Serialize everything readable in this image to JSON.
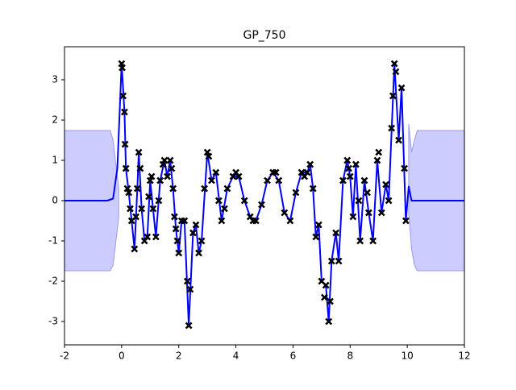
{
  "chart_data": {
    "type": "line",
    "title": "GP_750",
    "xlim": [
      -2,
      12
    ],
    "ylim": [
      -3.58,
      3.82
    ],
    "xticks": [
      -2,
      0,
      2,
      4,
      6,
      8,
      10,
      12
    ],
    "yticks": [
      -3,
      -2,
      -1,
      0,
      1,
      2,
      3
    ],
    "band": {
      "color": "#ccccff",
      "edge": "#9999ee",
      "x": [
        -2,
        -0.4,
        -0.3,
        -0.2,
        -0.1,
        5,
        10.05,
        10.15,
        10.25,
        10.35,
        12
      ],
      "upper": [
        1.74,
        1.74,
        1.5,
        0.9,
        0.3,
        null,
        1.9,
        1.2,
        1.5,
        1.74,
        1.74
      ],
      "lower": [
        -1.74,
        -1.74,
        -1.6,
        -1.0,
        -0.4,
        null,
        -0.3,
        -1.2,
        -1.6,
        -1.74,
        -1.74
      ]
    },
    "mean": {
      "color": "#0000ff",
      "x": [
        -2,
        -0.5,
        -0.3,
        -0.15,
        0,
        0.1,
        0.15,
        0.25,
        0.35,
        0.45,
        0.55,
        0.6,
        0.7,
        0.8,
        0.9,
        1.0,
        1.1,
        1.2,
        1.35,
        1.5,
        1.6,
        1.7,
        1.8,
        1.9,
        2.0,
        2.1,
        2.2,
        2.35,
        2.5,
        2.6,
        2.7,
        2.8,
        3.0,
        3.15,
        3.3,
        3.5,
        3.7,
        3.9,
        4.1,
        4.3,
        4.5,
        4.7,
        4.9,
        5.1,
        5.3,
        5.5,
        5.7,
        5.9,
        6.1,
        6.3,
        6.5,
        6.6,
        6.7,
        6.8,
        6.9,
        7.0,
        7.15,
        7.25,
        7.35,
        7.5,
        7.6,
        7.75,
        7.9,
        8.0,
        8.1,
        8.2,
        8.35,
        8.5,
        8.65,
        8.8,
        8.95,
        9.1,
        9.25,
        9.35,
        9.55,
        9.7,
        9.8,
        9.95,
        10.05,
        10.15,
        12
      ],
      "values": [
        0,
        0,
        0.05,
        0.8,
        3.4,
        2.2,
        0.8,
        0.2,
        -0.5,
        -1.2,
        0.3,
        1.2,
        -0.2,
        -1.0,
        -0.9,
        0.5,
        -0.2,
        -0.9,
        0.5,
        1.0,
        0.6,
        1.0,
        0.3,
        -0.7,
        -1.3,
        -0.5,
        -0.5,
        -3.1,
        -0.8,
        -0.6,
        -1.3,
        -1.0,
        1.2,
        0.5,
        0.7,
        -0.5,
        0.3,
        0.6,
        0.6,
        0.0,
        -0.4,
        -0.5,
        -0.1,
        0.5,
        0.7,
        0.5,
        -0.3,
        -0.5,
        0.2,
        0.7,
        0.7,
        0.9,
        0.3,
        -0.9,
        -0.6,
        -2.0,
        -2.1,
        -3.0,
        -1.5,
        -0.8,
        -1.5,
        0.5,
        1.0,
        0.6,
        -0.4,
        0.9,
        -1.0,
        0.5,
        -0.3,
        -1.0,
        1.0,
        -0.3,
        0.4,
        0.0,
        3.4,
        1.5,
        2.8,
        -0.5,
        0.35,
        0,
        0
      ]
    },
    "points": {
      "color": "#000000",
      "x": [
        0,
        0.02,
        0.05,
        0.1,
        0.12,
        0.15,
        0.2,
        0.25,
        0.3,
        0.35,
        0.45,
        0.5,
        0.55,
        0.6,
        0.65,
        0.7,
        0.8,
        0.9,
        0.95,
        1.0,
        1.05,
        1.1,
        1.2,
        1.3,
        1.35,
        1.45,
        1.5,
        1.6,
        1.7,
        1.75,
        1.8,
        1.85,
        1.9,
        1.95,
        2.0,
        2.1,
        2.2,
        2.3,
        2.35,
        2.4,
        2.5,
        2.6,
        2.7,
        2.8,
        2.9,
        3.0,
        3.05,
        3.15,
        3.3,
        3.4,
        3.5,
        3.6,
        3.7,
        3.9,
        4.0,
        4.1,
        4.3,
        4.5,
        4.6,
        4.7,
        4.9,
        5.1,
        5.3,
        5.4,
        5.5,
        5.7,
        5.9,
        6.1,
        6.3,
        6.4,
        6.5,
        6.6,
        6.7,
        6.8,
        6.9,
        7.0,
        7.1,
        7.15,
        7.25,
        7.3,
        7.35,
        7.5,
        7.6,
        7.75,
        7.9,
        7.95,
        8.0,
        8.1,
        8.2,
        8.3,
        8.35,
        8.5,
        8.6,
        8.65,
        8.8,
        8.95,
        9.0,
        9.1,
        9.25,
        9.35,
        9.45,
        9.5,
        9.55,
        9.6,
        9.7,
        9.8,
        9.9,
        9.95
      ],
      "y": [
        3.4,
        3.3,
        2.6,
        2.2,
        1.4,
        0.8,
        0.3,
        0.2,
        -0.2,
        -0.5,
        -1.2,
        -0.4,
        0.3,
        1.2,
        0.8,
        -0.2,
        -1.0,
        -0.9,
        0.1,
        0.5,
        0.6,
        -0.2,
        -0.9,
        0.0,
        0.5,
        0.9,
        1.0,
        0.6,
        1.0,
        0.8,
        0.3,
        -0.4,
        -0.7,
        -1.0,
        -1.3,
        -0.5,
        -0.5,
        -2.0,
        -3.1,
        -2.2,
        -0.8,
        -0.6,
        -1.3,
        -1.0,
        0.3,
        1.2,
        1.1,
        0.5,
        0.7,
        0.0,
        -0.5,
        -0.2,
        0.3,
        0.6,
        0.7,
        0.6,
        0.0,
        -0.4,
        -0.5,
        -0.5,
        -0.1,
        0.5,
        0.7,
        0.7,
        0.5,
        -0.3,
        -0.5,
        0.2,
        0.7,
        0.6,
        0.7,
        0.9,
        0.3,
        -0.9,
        -0.6,
        -2.0,
        -2.4,
        -2.1,
        -3.0,
        -2.5,
        -1.5,
        -0.8,
        -1.5,
        0.5,
        1.0,
        0.8,
        0.6,
        -0.4,
        0.9,
        0.0,
        -1.0,
        0.5,
        0.2,
        -0.3,
        -1.0,
        1.0,
        1.2,
        -0.3,
        0.4,
        0.0,
        1.8,
        2.6,
        3.4,
        3.2,
        1.5,
        2.8,
        0.8,
        -0.5
      ]
    }
  }
}
